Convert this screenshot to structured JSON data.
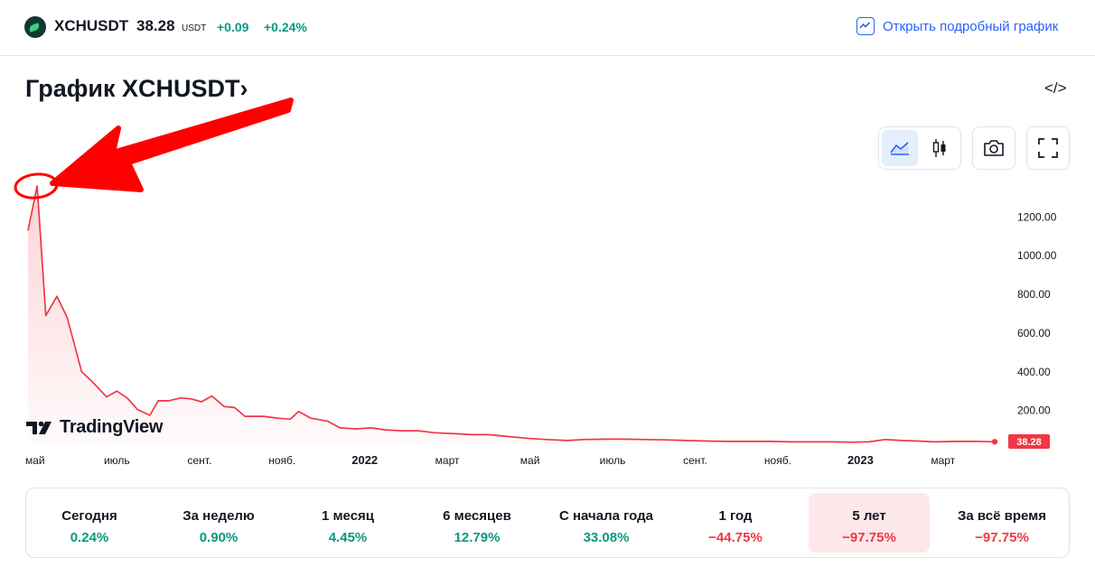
{
  "header": {
    "symbol": "XCHUSDT",
    "price": "38.28",
    "currency": "USDT",
    "change": "+0.09",
    "change_pct": "+0.24%",
    "open_chart_label": "Открыть подробный график"
  },
  "title": "График XCHUSDT›",
  "embed_label": "</>",
  "brand": "TradingView",
  "colors": {
    "line": "#f23645",
    "positive": "#089981",
    "negative": "#f23645",
    "accent": "#2962ff",
    "annotation": "#ff0000"
  },
  "icons": [
    "xch-logo-icon",
    "chart-line-icon",
    "code-icon",
    "area-chart-icon",
    "candles-icon",
    "camera-icon",
    "fullscreen-icon",
    "tradingview-logo-icon",
    "red-arrow-annotation",
    "red-circle-annotation"
  ],
  "chart_data": {
    "type": "area",
    "title": "",
    "xlabel": "",
    "ylabel": "",
    "y_ticks": [
      "1200.00",
      "1000.00",
      "800.00",
      "600.00",
      "400.00",
      "200.00"
    ],
    "y_tick_values": [
      1200,
      1000,
      800,
      600,
      400,
      200
    ],
    "ylim": [
      35,
      1360
    ],
    "x_ticks": [
      {
        "label": "май",
        "t": 0.0
      },
      {
        "label": "июль",
        "t": 2.0
      },
      {
        "label": "сент.",
        "t": 4.0
      },
      {
        "label": "нояб.",
        "t": 6.0
      },
      {
        "label": "2022",
        "t": 8.0
      },
      {
        "label": "март",
        "t": 10.0
      },
      {
        "label": "май",
        "t": 12.0
      },
      {
        "label": "июль",
        "t": 14.0
      },
      {
        "label": "сент.",
        "t": 16.0
      },
      {
        "label": "нояб.",
        "t": 18.0
      },
      {
        "label": "2023",
        "t": 20.0
      },
      {
        "label": "март",
        "t": 22.0
      }
    ],
    "x_unit": "months since May 2021",
    "x_range": [
      -0.15,
      23.25
    ],
    "last_value_label": "38.28",
    "grid": false,
    "legend": "none",
    "series": [
      {
        "name": "XCHUSDT",
        "points": [
          [
            -0.15,
            1130
          ],
          [
            0.07,
            1360
          ],
          [
            0.28,
            690
          ],
          [
            0.55,
            790
          ],
          [
            0.8,
            680
          ],
          [
            1.15,
            400
          ],
          [
            1.4,
            350
          ],
          [
            1.75,
            270
          ],
          [
            2.0,
            300
          ],
          [
            2.25,
            265
          ],
          [
            2.5,
            205
          ],
          [
            2.8,
            175
          ],
          [
            3.0,
            250
          ],
          [
            3.25,
            250
          ],
          [
            3.55,
            265
          ],
          [
            3.8,
            260
          ],
          [
            4.05,
            245
          ],
          [
            4.3,
            275
          ],
          [
            4.6,
            220
          ],
          [
            4.85,
            215
          ],
          [
            5.1,
            170
          ],
          [
            5.55,
            170
          ],
          [
            5.9,
            160
          ],
          [
            6.2,
            155
          ],
          [
            6.4,
            195
          ],
          [
            6.7,
            160
          ],
          [
            7.1,
            145
          ],
          [
            7.4,
            110
          ],
          [
            7.8,
            105
          ],
          [
            8.15,
            110
          ],
          [
            8.5,
            100
          ],
          [
            8.9,
            95
          ],
          [
            9.3,
            95
          ],
          [
            9.7,
            85
          ],
          [
            10.2,
            80
          ],
          [
            10.6,
            75
          ],
          [
            11.0,
            75
          ],
          [
            11.5,
            65
          ],
          [
            12.0,
            55
          ],
          [
            12.4,
            50
          ],
          [
            12.9,
            45
          ],
          [
            13.3,
            50
          ],
          [
            13.8,
            52
          ],
          [
            14.3,
            52
          ],
          [
            14.8,
            50
          ],
          [
            15.3,
            48
          ],
          [
            15.8,
            45
          ],
          [
            16.3,
            42
          ],
          [
            16.8,
            40
          ],
          [
            17.3,
            40
          ],
          [
            17.8,
            40
          ],
          [
            18.3,
            38
          ],
          [
            18.8,
            38
          ],
          [
            19.3,
            38
          ],
          [
            19.8,
            36
          ],
          [
            20.2,
            38
          ],
          [
            20.6,
            50
          ],
          [
            21.0,
            45
          ],
          [
            21.4,
            42
          ],
          [
            21.8,
            38
          ],
          [
            22.3,
            40
          ],
          [
            22.8,
            40
          ],
          [
            23.25,
            38.28
          ]
        ]
      }
    ]
  },
  "performance": [
    {
      "label": "Сегодня",
      "value": "0.24%",
      "sign": "pos",
      "active": false
    },
    {
      "label": "За неделю",
      "value": "0.90%",
      "sign": "pos",
      "active": false
    },
    {
      "label": "1 месяц",
      "value": "4.45%",
      "sign": "pos",
      "active": false
    },
    {
      "label": "6 месяцев",
      "value": "12.79%",
      "sign": "pos",
      "active": false
    },
    {
      "label": "С начала года",
      "value": "33.08%",
      "sign": "pos",
      "active": false
    },
    {
      "label": "1 год",
      "value": "−44.75%",
      "sign": "neg",
      "active": false
    },
    {
      "label": "5 лет",
      "value": "−97.75%",
      "sign": "neg",
      "active": true
    },
    {
      "label": "За всё время",
      "value": "−97.75%",
      "sign": "neg",
      "active": false
    }
  ]
}
